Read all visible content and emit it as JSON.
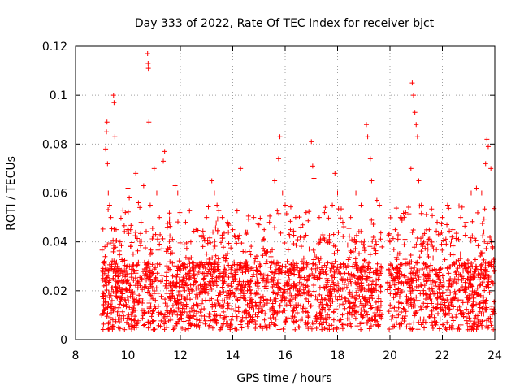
{
  "chart_data": {
    "type": "scatter",
    "title": "Day 333 of 2022, Rate Of TEC Index for receiver bjct",
    "xlabel": "GPS time / hours",
    "ylabel": "ROTI / TECUs",
    "xlim": [
      8,
      24
    ],
    "ylim": [
      0,
      0.12
    ],
    "xticks": [
      8,
      10,
      12,
      14,
      16,
      18,
      20,
      22,
      24
    ],
    "xtick_labels": [
      "8",
      "10",
      "12",
      "14",
      "16",
      "18",
      "20",
      "22",
      "24"
    ],
    "yticks": [
      0,
      0.02,
      0.04,
      0.06,
      0.08,
      0.1,
      0.12
    ],
    "ytick_labels": [
      "0",
      "0.02",
      "0.04",
      "0.06",
      "0.08",
      "0.1",
      "0.12"
    ],
    "grid": true,
    "marker": "+",
    "color": "#ff0000",
    "data_gap_hours": [
      19.7,
      19.9
    ],
    "points": [
      [
        9.0,
        0.01
      ],
      [
        9.05,
        0.025
      ],
      [
        9.1,
        0.032
      ],
      [
        9.12,
        0.038
      ],
      [
        9.15,
        0.078
      ],
      [
        9.18,
        0.085
      ],
      [
        9.2,
        0.089
      ],
      [
        9.22,
        0.072
      ],
      [
        9.25,
        0.06
      ],
      [
        9.3,
        0.055
      ],
      [
        9.35,
        0.05
      ],
      [
        9.45,
        0.1
      ],
      [
        9.47,
        0.097
      ],
      [
        9.5,
        0.083
      ],
      [
        9.55,
        0.045
      ],
      [
        9.6,
        0.03
      ],
      [
        9.7,
        0.04
      ],
      [
        9.8,
        0.028
      ],
      [
        9.9,
        0.052
      ],
      [
        10.0,
        0.062
      ],
      [
        10.05,
        0.058
      ],
      [
        10.1,
        0.045
      ],
      [
        10.2,
        0.035
      ],
      [
        10.3,
        0.068
      ],
      [
        10.4,
        0.056
      ],
      [
        10.5,
        0.048
      ],
      [
        10.6,
        0.063
      ],
      [
        10.75,
        0.117
      ],
      [
        10.77,
        0.113
      ],
      [
        10.78,
        0.111
      ],
      [
        10.8,
        0.089
      ],
      [
        10.85,
        0.055
      ],
      [
        11.0,
        0.07
      ],
      [
        11.1,
        0.06
      ],
      [
        11.2,
        0.05
      ],
      [
        11.35,
        0.073
      ],
      [
        11.4,
        0.077
      ],
      [
        11.5,
        0.046
      ],
      [
        11.7,
        0.041
      ],
      [
        11.8,
        0.063
      ],
      [
        11.9,
        0.06
      ],
      [
        12.0,
        0.03
      ],
      [
        12.2,
        0.048
      ],
      [
        12.4,
        0.04
      ],
      [
        12.6,
        0.045
      ],
      [
        12.8,
        0.042
      ],
      [
        13.0,
        0.05
      ],
      [
        13.2,
        0.065
      ],
      [
        13.3,
        0.06
      ],
      [
        13.4,
        0.055
      ],
      [
        13.6,
        0.05
      ],
      [
        13.8,
        0.048
      ],
      [
        14.0,
        0.045
      ],
      [
        14.2,
        0.042
      ],
      [
        14.3,
        0.07
      ],
      [
        14.5,
        0.044
      ],
      [
        14.8,
        0.05
      ],
      [
        15.0,
        0.047
      ],
      [
        15.2,
        0.045
      ],
      [
        15.4,
        0.048
      ],
      [
        15.6,
        0.065
      ],
      [
        15.75,
        0.074
      ],
      [
        15.8,
        0.083
      ],
      [
        15.9,
        0.06
      ],
      [
        16.0,
        0.055
      ],
      [
        16.2,
        0.045
      ],
      [
        16.4,
        0.05
      ],
      [
        16.6,
        0.046
      ],
      [
        16.8,
        0.052
      ],
      [
        17.0,
        0.081
      ],
      [
        17.05,
        0.071
      ],
      [
        17.1,
        0.066
      ],
      [
        17.3,
        0.05
      ],
      [
        17.5,
        0.052
      ],
      [
        17.8,
        0.055
      ],
      [
        17.9,
        0.068
      ],
      [
        18.0,
        0.06
      ],
      [
        18.2,
        0.048
      ],
      [
        18.5,
        0.05
      ],
      [
        18.7,
        0.06
      ],
      [
        18.9,
        0.055
      ],
      [
        19.1,
        0.088
      ],
      [
        19.15,
        0.083
      ],
      [
        19.25,
        0.074
      ],
      [
        19.3,
        0.065
      ],
      [
        19.5,
        0.057
      ],
      [
        19.6,
        0.055
      ],
      [
        20.0,
        0.04
      ],
      [
        20.2,
        0.045
      ],
      [
        20.4,
        0.05
      ],
      [
        20.6,
        0.052
      ],
      [
        20.8,
        0.07
      ],
      [
        20.85,
        0.105
      ],
      [
        20.9,
        0.1
      ],
      [
        20.95,
        0.093
      ],
      [
        21.0,
        0.088
      ],
      [
        21.05,
        0.083
      ],
      [
        21.1,
        0.065
      ],
      [
        21.2,
        0.055
      ],
      [
        21.5,
        0.045
      ],
      [
        21.8,
        0.048
      ],
      [
        22.0,
        0.05
      ],
      [
        22.2,
        0.055
      ],
      [
        22.4,
        0.045
      ],
      [
        22.7,
        0.05
      ],
      [
        22.9,
        0.048
      ],
      [
        23.1,
        0.06
      ],
      [
        23.3,
        0.062
      ],
      [
        23.5,
        0.06
      ],
      [
        23.65,
        0.072
      ],
      [
        23.7,
        0.082
      ],
      [
        23.75,
        0.079
      ],
      [
        23.85,
        0.07
      ],
      [
        23.95,
        0.03
      ]
    ]
  }
}
